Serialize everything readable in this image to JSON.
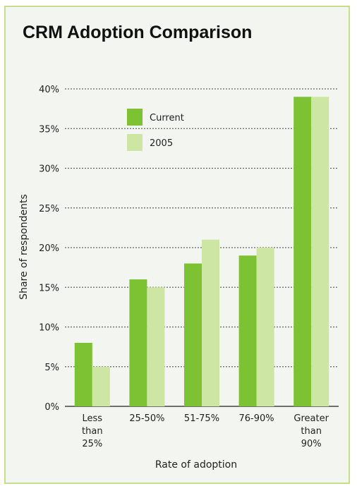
{
  "chart_data": {
    "type": "bar",
    "title": "CRM Adoption Comparison",
    "xlabel": "Rate of adoption",
    "ylabel": "Share of respondents",
    "ylim": [
      0,
      40
    ],
    "y_ticks": [
      "0%",
      "5%",
      "10%",
      "15%",
      "20%",
      "25%",
      "30%",
      "35%",
      "40%"
    ],
    "y_tick_values": [
      0,
      5,
      10,
      15,
      20,
      25,
      30,
      35,
      40
    ],
    "grid": true,
    "legend_position": "top-left",
    "categories": [
      [
        "Less",
        "than",
        "25%"
      ],
      [
        "25-50%"
      ],
      [
        "51-75%"
      ],
      [
        "76-90%"
      ],
      [
        "Greater",
        "than",
        "90%"
      ]
    ],
    "series": [
      {
        "name": "Current",
        "color": "#7cc232",
        "values": [
          8,
          16,
          18,
          19,
          39
        ]
      },
      {
        "name": "2005",
        "color": "#cde6a3",
        "values": [
          5,
          15,
          21,
          20,
          39
        ]
      }
    ]
  }
}
